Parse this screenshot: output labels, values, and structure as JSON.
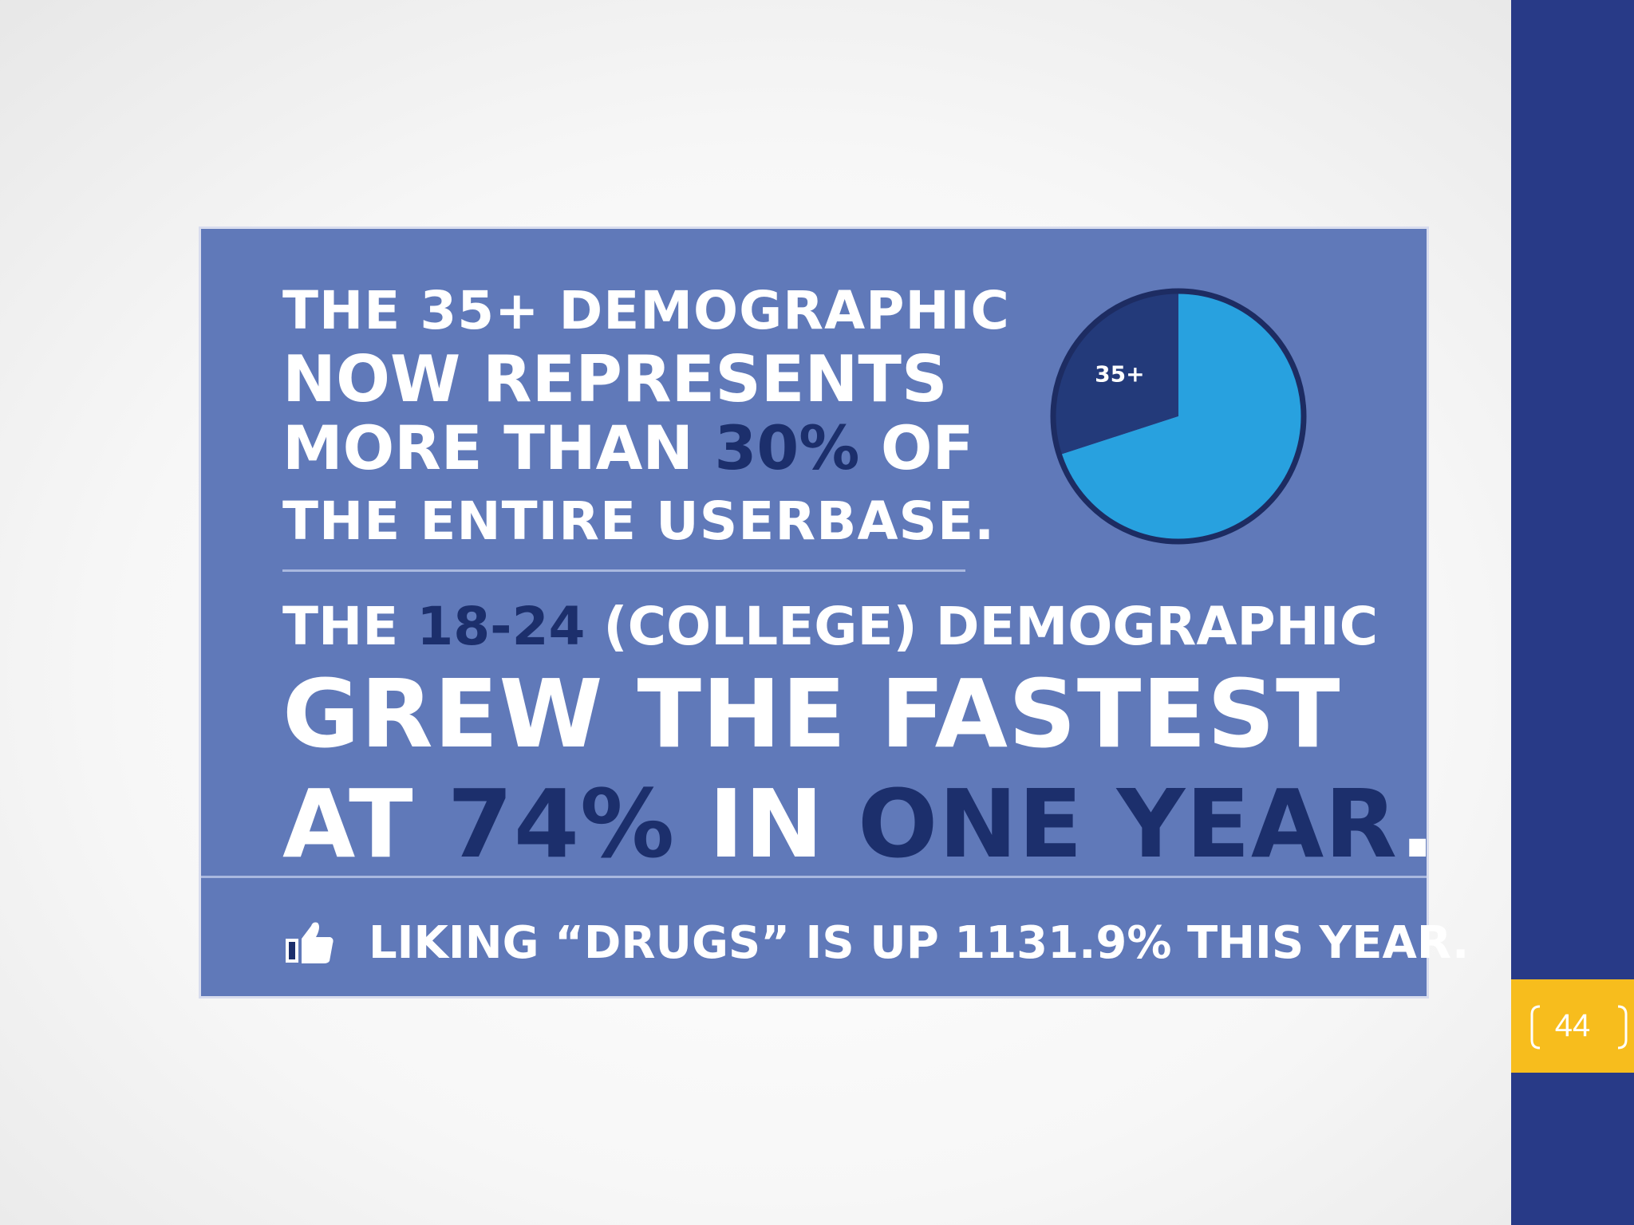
{
  "slide": {
    "page_number": "44"
  },
  "infographic": {
    "line1": "THE 35+ DEMOGRAPHIC",
    "line2": "NOW REPRESENTS",
    "line3_prefix": "MORE THAN ",
    "line3_highlight": "30%",
    "line3_suffix": " OF",
    "line4": "THE ENTIRE USERBASE.",
    "line5_prefix": "THE ",
    "line5_highlight": "18-24",
    "line5_suffix": " (COLLEGE) DEMOGRAPHIC",
    "line6": "GREW THE FASTEST",
    "line7_prefix": "AT ",
    "line7_highlight1": "74%",
    "line7_middle": " IN ",
    "line7_highlight2": "ONE YEAR",
    "line7_suffix": ".",
    "footer_text": "LIKING “DRUGS” IS UP 1131.9% THIS YEAR."
  },
  "chart_data": {
    "type": "pie",
    "slices": [
      {
        "label": "35+",
        "value": 30,
        "color": "#233a7a"
      },
      {
        "label": "",
        "value": 70,
        "color": "#28a1df"
      }
    ],
    "border_color": "#1d2c62"
  },
  "colors": {
    "infographic_bg": "#6079b9",
    "highlight_text": "#1c2f6c",
    "sidebar": "#283a87",
    "page_box": "#f7bd1d"
  },
  "icons": {
    "footer_icon": "thumbs-up-icon"
  }
}
